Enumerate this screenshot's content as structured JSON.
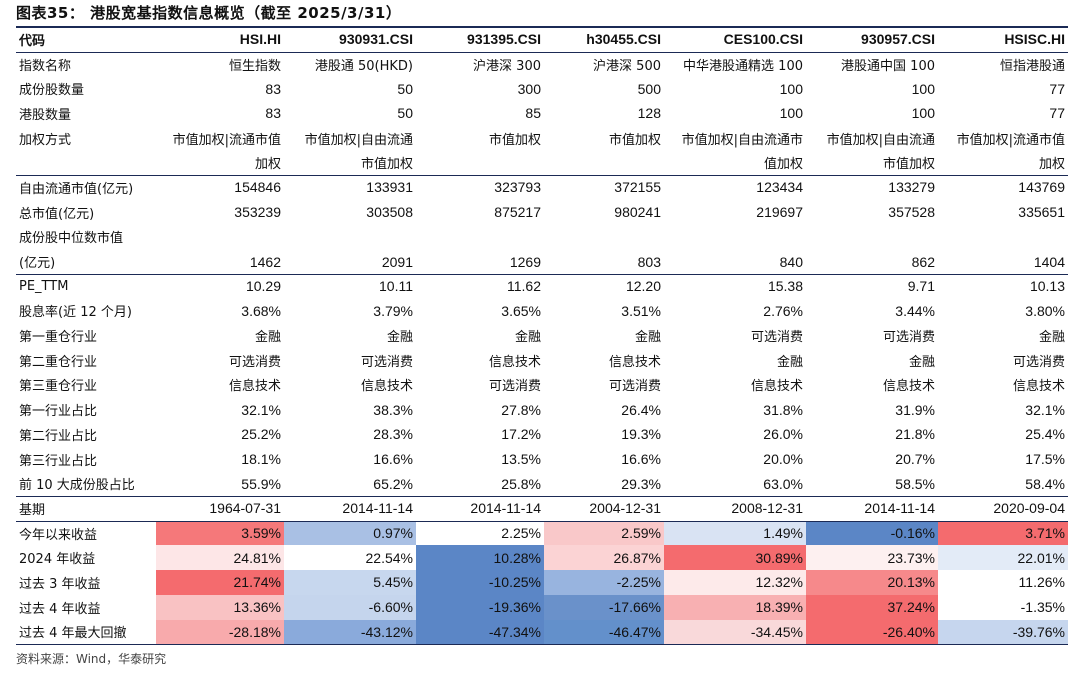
{
  "title": "图表35：  港股宽基指数信息概览（截至 2025/3/31）",
  "source": "资料来源：Wind，华泰研究",
  "colors": {
    "rule": "#1b2a55",
    "positive_strong": "#f46b6e",
    "negative_strong": "#5b86c6"
  },
  "header": {
    "label": "代码",
    "codes": [
      "HSI.HI",
      "930931.CSI",
      "931395.CSI",
      "h30455.CSI",
      "CES100.CSI",
      "930957.CSI",
      "HSISC.HI"
    ]
  },
  "rows": [
    {
      "label": "指数名称",
      "values": [
        "恒生指数",
        "港股通 50(HKD)",
        "沪港深 300",
        "沪港深 500",
        "中华港股通精选 100",
        "港股通中国 100",
        "恒指港股通"
      ]
    },
    {
      "label": "成份股数量",
      "values": [
        "83",
        "50",
        "300",
        "500",
        "100",
        "100",
        "77"
      ]
    },
    {
      "label": "港股数量",
      "values": [
        "83",
        "50",
        "85",
        "128",
        "100",
        "100",
        "77"
      ]
    },
    {
      "label": "加权方式",
      "values": [
        "市值加权|流通市值",
        "市值加权|自由流通",
        "市值加权",
        "市值加权",
        "市值加权|自由流通市",
        "市值加权|自由流通",
        "市值加权|流通市值"
      ]
    },
    {
      "label": "",
      "values": [
        "加权",
        "市值加权",
        "",
        "",
        "值加权",
        "市值加权",
        "加权"
      ]
    },
    {
      "label": "自由流通市值(亿元)",
      "values": [
        "154846",
        "133931",
        "323793",
        "372155",
        "123434",
        "133279",
        "143769"
      ]
    },
    {
      "label": "总市值(亿元)",
      "values": [
        "353239",
        "303508",
        "875217",
        "980241",
        "219697",
        "357528",
        "335651"
      ]
    },
    {
      "label": "成份股中位数市值",
      "values": [
        "",
        "",
        "",
        "",
        "",
        "",
        ""
      ]
    },
    {
      "label": "(亿元)",
      "values": [
        "1462",
        "2091",
        "1269",
        "803",
        "840",
        "862",
        "1404"
      ]
    },
    {
      "label": "PE_TTM",
      "values": [
        "10.29",
        "10.11",
        "11.62",
        "12.20",
        "15.38",
        "9.71",
        "10.13"
      ]
    },
    {
      "label": "股息率(近 12 个月)",
      "values": [
        "3.68%",
        "3.79%",
        "3.65%",
        "3.51%",
        "2.76%",
        "3.44%",
        "3.80%"
      ]
    },
    {
      "label": "第一重仓行业",
      "values": [
        "金融",
        "金融",
        "金融",
        "金融",
        "可选消费",
        "可选消费",
        "金融"
      ]
    },
    {
      "label": "第二重仓行业",
      "values": [
        "可选消费",
        "可选消费",
        "信息技术",
        "信息技术",
        "金融",
        "金融",
        "可选消费"
      ]
    },
    {
      "label": "第三重仓行业",
      "values": [
        "信息技术",
        "信息技术",
        "可选消费",
        "可选消费",
        "信息技术",
        "信息技术",
        "信息技术"
      ]
    },
    {
      "label": "第一行业占比",
      "values": [
        "32.1%",
        "38.3%",
        "27.8%",
        "26.4%",
        "31.8%",
        "31.9%",
        "32.1%"
      ]
    },
    {
      "label": "第二行业占比",
      "values": [
        "25.2%",
        "28.3%",
        "17.2%",
        "19.3%",
        "26.0%",
        "21.8%",
        "25.4%"
      ]
    },
    {
      "label": "第三行业占比",
      "values": [
        "18.1%",
        "16.6%",
        "13.5%",
        "16.6%",
        "20.0%",
        "20.7%",
        "17.5%"
      ]
    },
    {
      "label": "前 10 大成份股占比",
      "values": [
        "55.9%",
        "65.2%",
        "25.8%",
        "29.3%",
        "63.0%",
        "58.5%",
        "58.4%"
      ]
    },
    {
      "label": "基期",
      "values": [
        "1964-07-31",
        "2014-11-14",
        "2014-11-14",
        "2004-12-31",
        "2008-12-31",
        "2014-11-14",
        "2020-09-04"
      ]
    },
    {
      "label": "今年以来收益",
      "values": [
        "3.59%",
        "0.97%",
        "2.25%",
        "2.59%",
        "1.49%",
        "-0.16%",
        "3.71%"
      ],
      "colors": [
        "#f5787a",
        "#a9c0e4",
        "#ffffff",
        "#f9c8c9",
        "#d9e3f3",
        "#5b86c6",
        "#f46b6e"
      ]
    },
    {
      "label": "2024 年收益",
      "values": [
        "24.81%",
        "22.54%",
        "10.28%",
        "26.87%",
        "30.89%",
        "23.73%",
        "22.01%"
      ],
      "colors": [
        "#fde6e7",
        "#ffffff",
        "#5b86c6",
        "#fbd3d4",
        "#f46b6e",
        "#fdf0f0",
        "#e3ebf7"
      ]
    },
    {
      "label": "过去 3 年收益",
      "values": [
        "21.74%",
        "5.45%",
        "-10.25%",
        "-2.25%",
        "12.32%",
        "20.13%",
        "11.26%"
      ],
      "colors": [
        "#f46b6e",
        "#c7d7ee",
        "#5b86c6",
        "#98b4df",
        "#fdeaea",
        "#f6898b",
        "#ffffff"
      ]
    },
    {
      "label": "过去 4 年收益",
      "values": [
        "13.36%",
        "-6.60%",
        "-19.36%",
        "-17.66%",
        "18.39%",
        "37.24%",
        "-1.35%"
      ],
      "colors": [
        "#f9c2c3",
        "#c5d5ed",
        "#5b86c6",
        "#6a91ca",
        "#f8b0b2",
        "#f46b6e",
        "#ffffff"
      ]
    },
    {
      "label": "过去 4 年最大回撤",
      "values": [
        "-28.18%",
        "-43.12%",
        "-47.34%",
        "-46.47%",
        "-34.45%",
        "-26.40%",
        "-39.76%"
      ],
      "colors": [
        "#f8aaac",
        "#8aaadb",
        "#5b86c6",
        "#6390cb",
        "#f9d9da",
        "#f46b6e",
        "#c6d6ee"
      ]
    }
  ]
}
